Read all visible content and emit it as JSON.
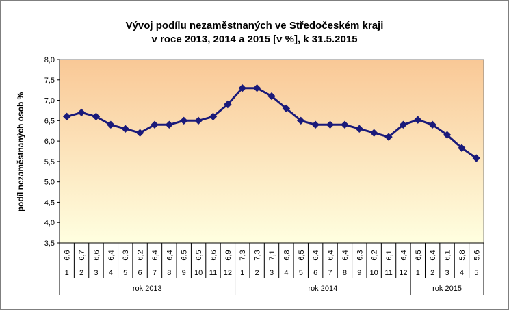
{
  "chart_data": {
    "type": "line",
    "title_lines": [
      "Vývoj podílu nezaměstnaných ve Středočeském kraji",
      "v roce 2013, 2014 a 2015 [v %], k 31.5.2015"
    ],
    "ylabel": "podíl nezaměstnaných osob %",
    "ylim": [
      3.5,
      8.0
    ],
    "yticks": [
      "3,5",
      "4,0",
      "4,5",
      "5,0",
      "5,5",
      "6,0",
      "6,5",
      "7,0",
      "7,5",
      "8,0"
    ],
    "ytick_values": [
      3.5,
      4.0,
      4.5,
      5.0,
      5.5,
      6.0,
      6.5,
      7.0,
      7.5,
      8.0
    ],
    "grid": false,
    "legend": "none",
    "months": [
      "1",
      "2",
      "3",
      "4",
      "5",
      "6",
      "7",
      "8",
      "9",
      "10",
      "11",
      "12",
      "1",
      "2",
      "3",
      "4",
      "5",
      "6",
      "7",
      "8",
      "9",
      "10",
      "11",
      "12",
      "1",
      "2",
      "3",
      "4",
      "5"
    ],
    "value_labels": [
      "6,6",
      "6,7",
      "6,6",
      "6,4",
      "6,3",
      "6,2",
      "6,4",
      "6,4",
      "6,5",
      "6,5",
      "6,6",
      "6,9",
      "7,3",
      "7,3",
      "7,1",
      "6,8",
      "6,5",
      "6,4",
      "6,4",
      "6,4",
      "6,3",
      "6,2",
      "6,1",
      "6,4",
      "6,5",
      "6,4",
      "6,1",
      "5,8",
      "5,6"
    ],
    "values": [
      6.6,
      6.7,
      6.6,
      6.4,
      6.3,
      6.2,
      6.4,
      6.4,
      6.5,
      6.5,
      6.6,
      6.9,
      7.3,
      7.3,
      7.1,
      6.8,
      6.5,
      6.4,
      6.4,
      6.4,
      6.3,
      6.2,
      6.1,
      6.4,
      6.52,
      6.4,
      6.15,
      5.83,
      5.58
    ],
    "years": [
      {
        "label": "rok 2013",
        "count": 12
      },
      {
        "label": "rok 2014",
        "count": 12
      },
      {
        "label": "rok 2015",
        "count": 5
      }
    ],
    "colors": {
      "line": "#1a1a7a",
      "marker": "#1a1a7a",
      "plot_top": "#f9c896",
      "plot_bottom": "#ffffe0",
      "axis": "#000000"
    }
  }
}
